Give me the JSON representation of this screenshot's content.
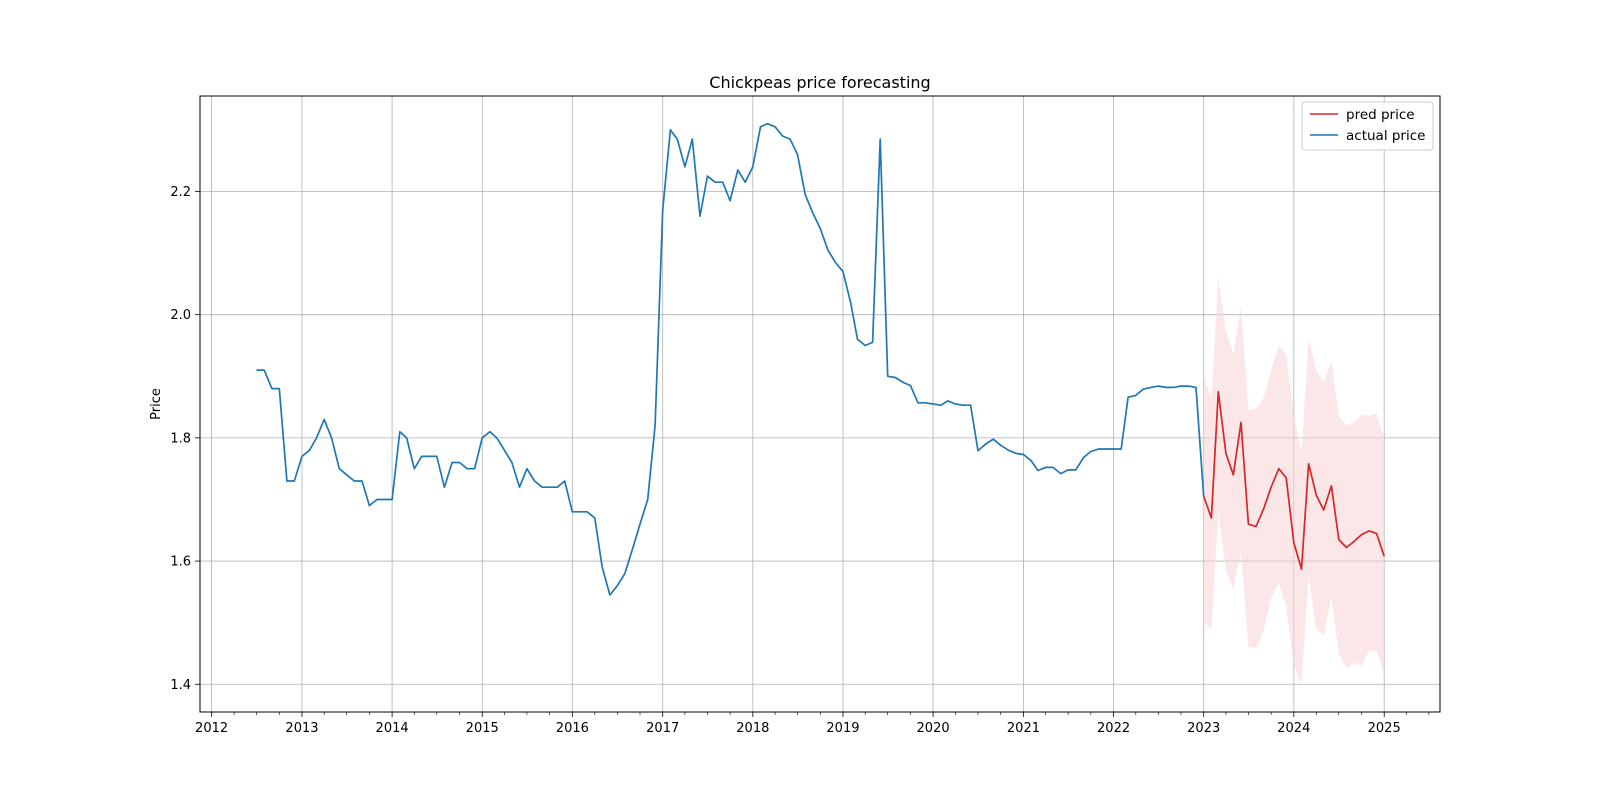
{
  "chart_data": {
    "type": "line",
    "title": "Chickpeas price forecasting",
    "xlabel": "",
    "ylabel": "Price",
    "xlim": [
      "2011-11-15",
      "2025-08-15"
    ],
    "ylim": [
      1.355,
      2.355
    ],
    "grid": true,
    "legend_position": "top-right",
    "x_ticks": [
      "2012",
      "2013",
      "2014",
      "2015",
      "2016",
      "2017",
      "2018",
      "2019",
      "2020",
      "2021",
      "2022",
      "2023",
      "2024",
      "2025"
    ],
    "y_ticks": [
      "1.4",
      "1.6",
      "1.8",
      "2.0",
      "2.2"
    ],
    "colors": {
      "actual": "#1f77b4",
      "pred": "#d62728",
      "band": "#f8d3d3"
    },
    "series": [
      {
        "name": "pred price",
        "x": [
          "2023-01-01",
          "2023-02-01",
          "2023-03-01",
          "2023-04-01",
          "2023-05-01",
          "2023-06-01",
          "2023-07-01",
          "2023-08-01",
          "2023-09-01",
          "2023-10-01",
          "2023-11-01",
          "2023-12-01",
          "2024-01-01",
          "2024-02-01",
          "2024-03-01",
          "2024-04-01",
          "2024-05-01",
          "2024-06-01",
          "2024-07-01",
          "2024-08-01",
          "2024-09-01",
          "2024-10-01",
          "2024-11-01",
          "2024-12-01",
          "2025-01-01"
        ],
        "y": [
          1.705,
          1.67,
          1.875,
          1.775,
          1.74,
          1.825,
          1.66,
          1.656,
          1.685,
          1.72,
          1.75,
          1.735,
          1.63,
          1.587,
          1.758,
          1.707,
          1.683,
          1.722,
          1.635,
          1.622,
          1.632,
          1.643,
          1.649,
          1.645,
          1.608
        ],
        "lower": [
          1.5,
          1.49,
          1.68,
          1.585,
          1.555,
          1.615,
          1.46,
          1.46,
          1.485,
          1.54,
          1.565,
          1.525,
          1.43,
          1.4,
          1.575,
          1.49,
          1.48,
          1.54,
          1.45,
          1.425,
          1.435,
          1.43,
          1.455,
          1.455,
          1.415
        ],
        "upper": [
          1.9,
          1.865,
          2.06,
          1.975,
          1.935,
          2.015,
          1.845,
          1.848,
          1.865,
          1.91,
          1.95,
          1.935,
          1.835,
          1.775,
          1.96,
          1.91,
          1.89,
          1.925,
          1.835,
          1.82,
          1.825,
          1.838,
          1.835,
          1.84,
          1.8
        ]
      },
      {
        "name": "actual price",
        "x": [
          "2012-07-01",
          "2012-08-01",
          "2012-09-01",
          "2012-10-01",
          "2012-11-01",
          "2012-12-01",
          "2013-01-01",
          "2013-02-01",
          "2013-03-01",
          "2013-04-01",
          "2013-05-01",
          "2013-06-01",
          "2013-07-01",
          "2013-08-01",
          "2013-09-01",
          "2013-10-01",
          "2013-11-01",
          "2013-12-01",
          "2014-01-01",
          "2014-02-01",
          "2014-03-01",
          "2014-04-01",
          "2014-05-01",
          "2014-06-01",
          "2014-07-01",
          "2014-08-01",
          "2014-09-01",
          "2014-10-01",
          "2014-11-01",
          "2014-12-01",
          "2015-01-01",
          "2015-02-01",
          "2015-03-01",
          "2015-04-01",
          "2015-05-01",
          "2015-06-01",
          "2015-07-01",
          "2015-08-01",
          "2015-09-01",
          "2015-10-01",
          "2015-11-01",
          "2015-12-01",
          "2016-01-01",
          "2016-02-01",
          "2016-03-01",
          "2016-04-01",
          "2016-05-01",
          "2016-06-01",
          "2016-07-01",
          "2016-08-01",
          "2016-09-01",
          "2016-10-01",
          "2016-11-01",
          "2016-12-01",
          "2017-01-01",
          "2017-02-01",
          "2017-03-01",
          "2017-04-01",
          "2017-05-01",
          "2017-06-01",
          "2017-07-01",
          "2017-08-01",
          "2017-09-01",
          "2017-10-01",
          "2017-11-01",
          "2017-12-01",
          "2018-01-01",
          "2018-02-01",
          "2018-03-01",
          "2018-04-01",
          "2018-05-01",
          "2018-06-01",
          "2018-07-01",
          "2018-08-01",
          "2018-09-01",
          "2018-10-01",
          "2018-11-01",
          "2018-12-01",
          "2019-01-01",
          "2019-02-01",
          "2019-03-01",
          "2019-04-01",
          "2019-05-01",
          "2019-06-01",
          "2019-07-01",
          "2019-08-01",
          "2019-09-01",
          "2019-10-01",
          "2019-11-01",
          "2019-12-01",
          "2020-01-01",
          "2020-02-01",
          "2020-03-01",
          "2020-04-01",
          "2020-05-01",
          "2020-06-01",
          "2020-07-01",
          "2020-08-01",
          "2020-09-01",
          "2020-10-01",
          "2020-11-01",
          "2020-12-01",
          "2021-01-01",
          "2021-02-01",
          "2021-03-01",
          "2021-04-01",
          "2021-05-01",
          "2021-06-01",
          "2021-07-01",
          "2021-08-01",
          "2021-09-01",
          "2021-10-01",
          "2021-11-01",
          "2021-12-01",
          "2022-01-01",
          "2022-02-01",
          "2022-03-01",
          "2022-04-01",
          "2022-05-01",
          "2022-06-01",
          "2022-07-01",
          "2022-08-01",
          "2022-09-01",
          "2022-10-01",
          "2022-11-01",
          "2022-12-01",
          "2023-01-01"
        ],
        "y": [
          1.91,
          1.91,
          1.88,
          1.88,
          1.73,
          1.73,
          1.77,
          1.78,
          1.8,
          1.83,
          1.8,
          1.75,
          1.74,
          1.73,
          1.73,
          1.69,
          1.7,
          1.7,
          1.7,
          1.81,
          1.8,
          1.75,
          1.77,
          1.77,
          1.77,
          1.72,
          1.76,
          1.76,
          1.75,
          1.75,
          1.8,
          1.81,
          1.8,
          1.78,
          1.76,
          1.72,
          1.75,
          1.73,
          1.72,
          1.72,
          1.72,
          1.73,
          1.68,
          1.68,
          1.68,
          1.67,
          1.59,
          1.545,
          1.56,
          1.58,
          1.62,
          1.66,
          1.7,
          1.82,
          2.17,
          2.3,
          2.285,
          2.24,
          2.285,
          2.16,
          2.225,
          2.215,
          2.215,
          2.185,
          2.235,
          2.215,
          2.24,
          2.305,
          2.31,
          2.305,
          2.29,
          2.285,
          2.26,
          2.195,
          2.165,
          2.14,
          2.105,
          2.085,
          2.07,
          2.02,
          1.96,
          1.95,
          1.955,
          2.285,
          1.9,
          1.898,
          1.89,
          1.885,
          1.857,
          1.857,
          1.855,
          1.853,
          1.86,
          1.855,
          1.853,
          1.853,
          1.779,
          1.79,
          1.798,
          1.788,
          1.78,
          1.775,
          1.773,
          1.763,
          1.747,
          1.752,
          1.752,
          1.742,
          1.748,
          1.748,
          1.768,
          1.778,
          1.782,
          1.782,
          1.782,
          1.782,
          1.866,
          1.869,
          1.879,
          1.882,
          1.884,
          1.882,
          1.882,
          1.884,
          1.884,
          1.882,
          1.705
        ]
      }
    ]
  }
}
